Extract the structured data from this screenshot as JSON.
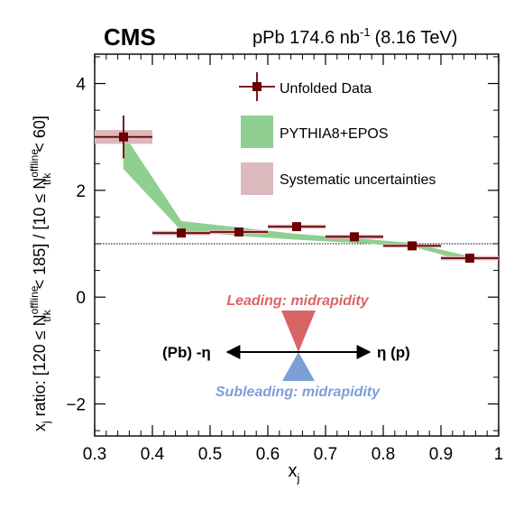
{
  "chart_data": {
    "type": "scatter",
    "experiment_label": "CMS",
    "collision_label": "pPb 174.6 nb",
    "collision_superscript": "-1",
    "energy_label": "(8.16 TeV)",
    "xlabel": "x",
    "xlabel_sub": "j",
    "ylabel": {
      "prefix": "x",
      "prefix_sub": "j",
      "text1": " ratio: [120 ≤ N",
      "sup1": "offline",
      "sub1": "trk",
      "text2": " < 185] / [10 ≤ N",
      "sup2": "offline",
      "sub2": "trk",
      "text3": " < 60]"
    },
    "xlim": [
      0.3,
      1.0
    ],
    "ylim": [
      -2.6,
      4.55
    ],
    "x_ticks": [
      "0.3",
      "0.4",
      "0.5",
      "0.6",
      "0.7",
      "0.8",
      "0.9",
      "1"
    ],
    "y_ticks": [
      "−2",
      "0",
      "2",
      "4"
    ],
    "reference_line_y": 1.0,
    "legend": {
      "data": "Unfolded Data",
      "model": "PYTHIA8+EPOS",
      "syst": "Systematic uncertainties"
    },
    "series": [
      {
        "name": "Unfolded Data",
        "x": [
          0.35,
          0.45,
          0.55,
          0.65,
          0.75,
          0.85,
          0.95
        ],
        "x_err": [
          0.05,
          0.05,
          0.05,
          0.05,
          0.05,
          0.05,
          0.05
        ],
        "y": [
          3.0,
          1.2,
          1.22,
          1.32,
          1.13,
          0.96,
          0.73
        ],
        "y_err": [
          0.4,
          0.05,
          0.05,
          0.06,
          0.05,
          0.04,
          0.05
        ],
        "syst_err": [
          0.13,
          0.04,
          0.04,
          0.04,
          0.04,
          0.03,
          0.04
        ],
        "color": "#6b0000"
      },
      {
        "name": "PYTHIA8+EPOS",
        "x": [
          0.35,
          0.45,
          0.55,
          0.65,
          0.75,
          0.85,
          0.95
        ],
        "y_low": [
          2.4,
          1.25,
          1.15,
          1.08,
          1.02,
          0.95,
          0.66
        ],
        "y_high": [
          3.05,
          1.42,
          1.3,
          1.18,
          1.1,
          1.01,
          0.76
        ],
        "color": "#8fcf8f"
      }
    ],
    "annotation": {
      "leading": "Leading: midrapidity",
      "subleading": "Subleading: midrapidity",
      "left_label": "(Pb) -η",
      "right_label": "η (p)",
      "leading_color": "#d96466",
      "subleading_color": "#7b9fd9"
    },
    "grid": false,
    "legend_position": "top-right"
  }
}
